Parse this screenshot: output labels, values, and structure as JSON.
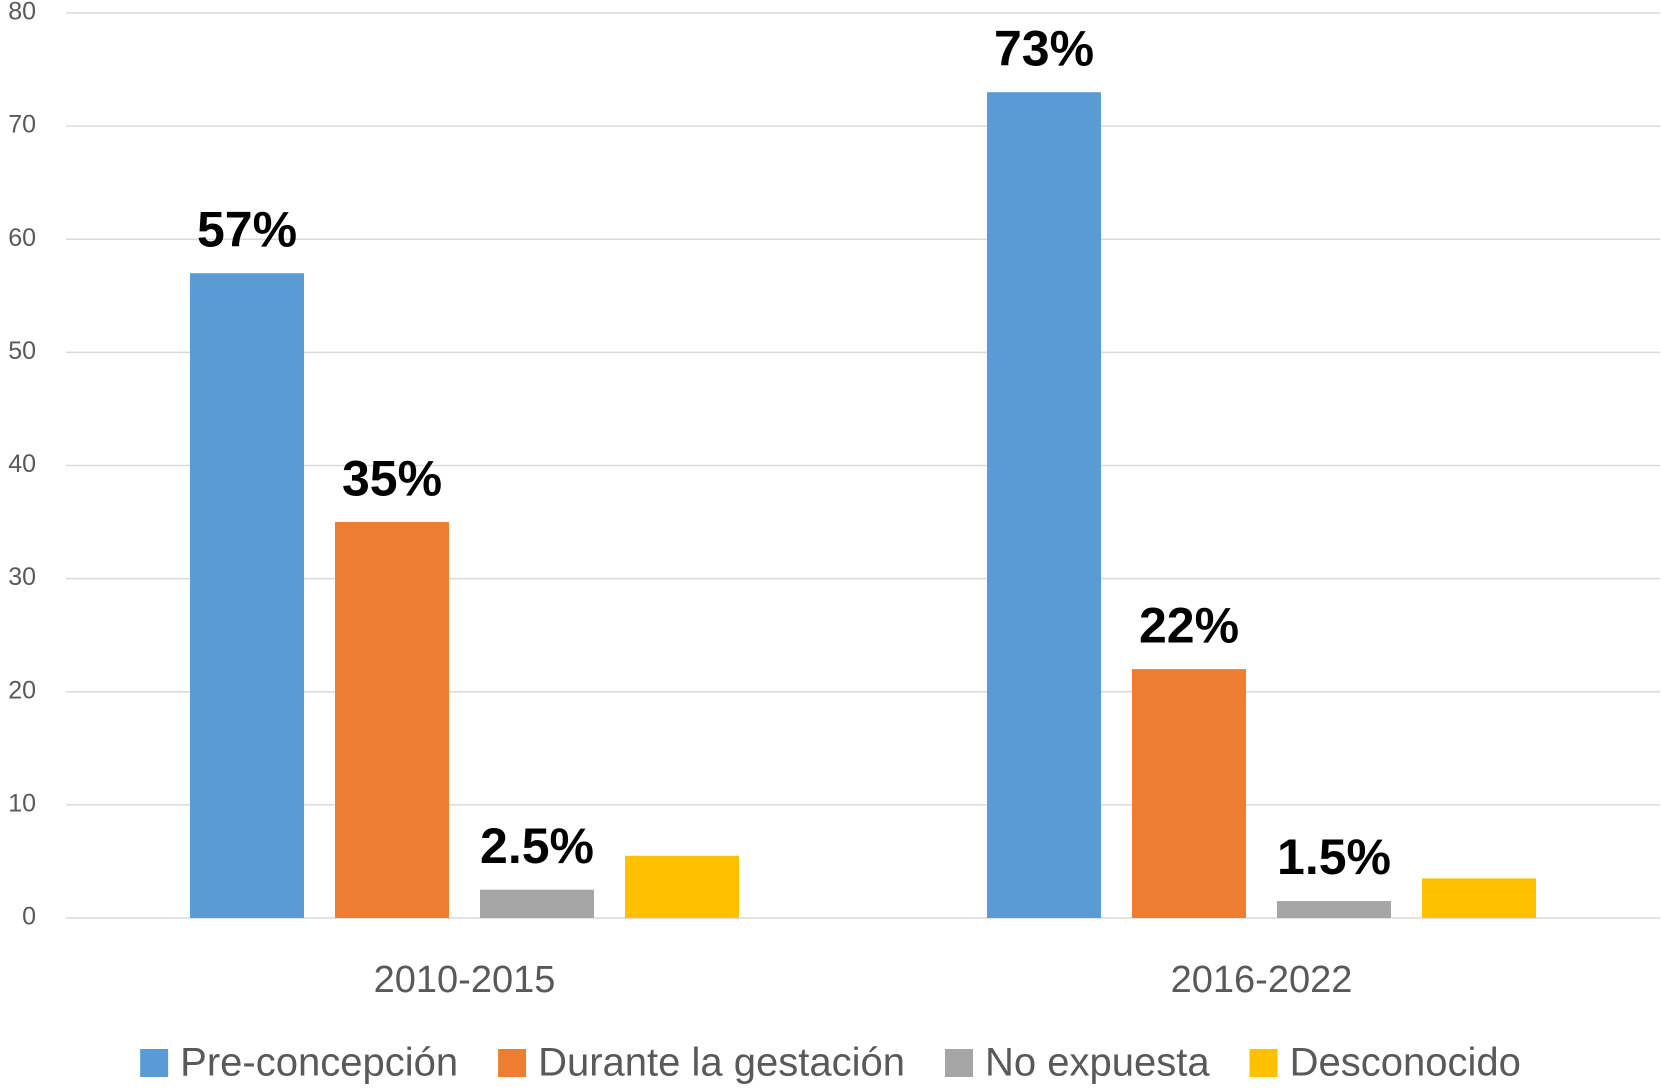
{
  "chart_data": {
    "type": "bar",
    "categories": [
      "2010-2015",
      "2016-2022"
    ],
    "series": [
      {
        "name": "Pre-concepción",
        "color": "#5b9bd5",
        "values": [
          57,
          73
        ],
        "value_labels": [
          "57%",
          "73%"
        ]
      },
      {
        "name": "Durante la gestación",
        "color": "#ed7d31",
        "values": [
          35,
          22
        ],
        "value_labels": [
          "35%",
          "22%"
        ]
      },
      {
        "name": "No expuesta",
        "color": "#a5a5a5",
        "values": [
          2.5,
          1.5
        ],
        "value_labels": [
          "2.5%",
          "1.5%"
        ]
      },
      {
        "name": "Desconocido",
        "color": "#ffc000",
        "values": [
          5.5,
          3.5
        ]
      }
    ],
    "ylim": [
      0,
      80
    ],
    "yticks": [
      0,
      10,
      20,
      30,
      40,
      50,
      60,
      70,
      80
    ],
    "grid": true,
    "legend": "bottom"
  }
}
